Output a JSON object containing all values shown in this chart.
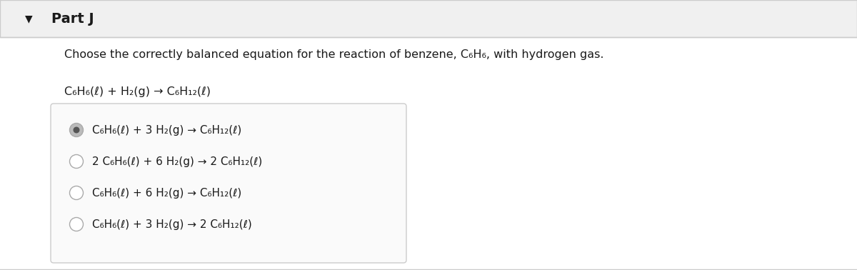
{
  "title": "Part J",
  "background_color": "#ffffff",
  "border_color": "#cccccc",
  "question_text": "Choose the correctly balanced equation for the reaction of benzene, C₆H₆, with hydrogen gas.",
  "unbalanced_eq": "C₆H₆(ℓ) + H₂(g) → C₆H₁₂(ℓ)",
  "options": [
    "C₆H₆(ℓ) + 3 H₂(g) → C₆H₁₂(ℓ)",
    "2 C₆H₆(ℓ) + 6 H₂(g) → 2 C₆H₁₂(ℓ)",
    "C₆H₆(ℓ) + 6 H₂(g) → C₆H₁₂(ℓ)",
    "C₆H₆(ℓ) + 3 H₂(g) → 2 C₆H₁₂(ℓ)"
  ],
  "selected_option": 0,
  "header_bg": "#f0f0f0",
  "header_border": "#cccccc",
  "text_color": "#1a1a1a",
  "radio_selected_fill": "#bbbbbb",
  "radio_selected_inner": "#555555",
  "radio_unselected_fill": "#ffffff",
  "radio_border_color": "#aaaaaa",
  "options_box_bg": "#fafafa",
  "options_box_border": "#cccccc",
  "figwidth": 12.0,
  "figheight": 3.78,
  "dpi": 100
}
